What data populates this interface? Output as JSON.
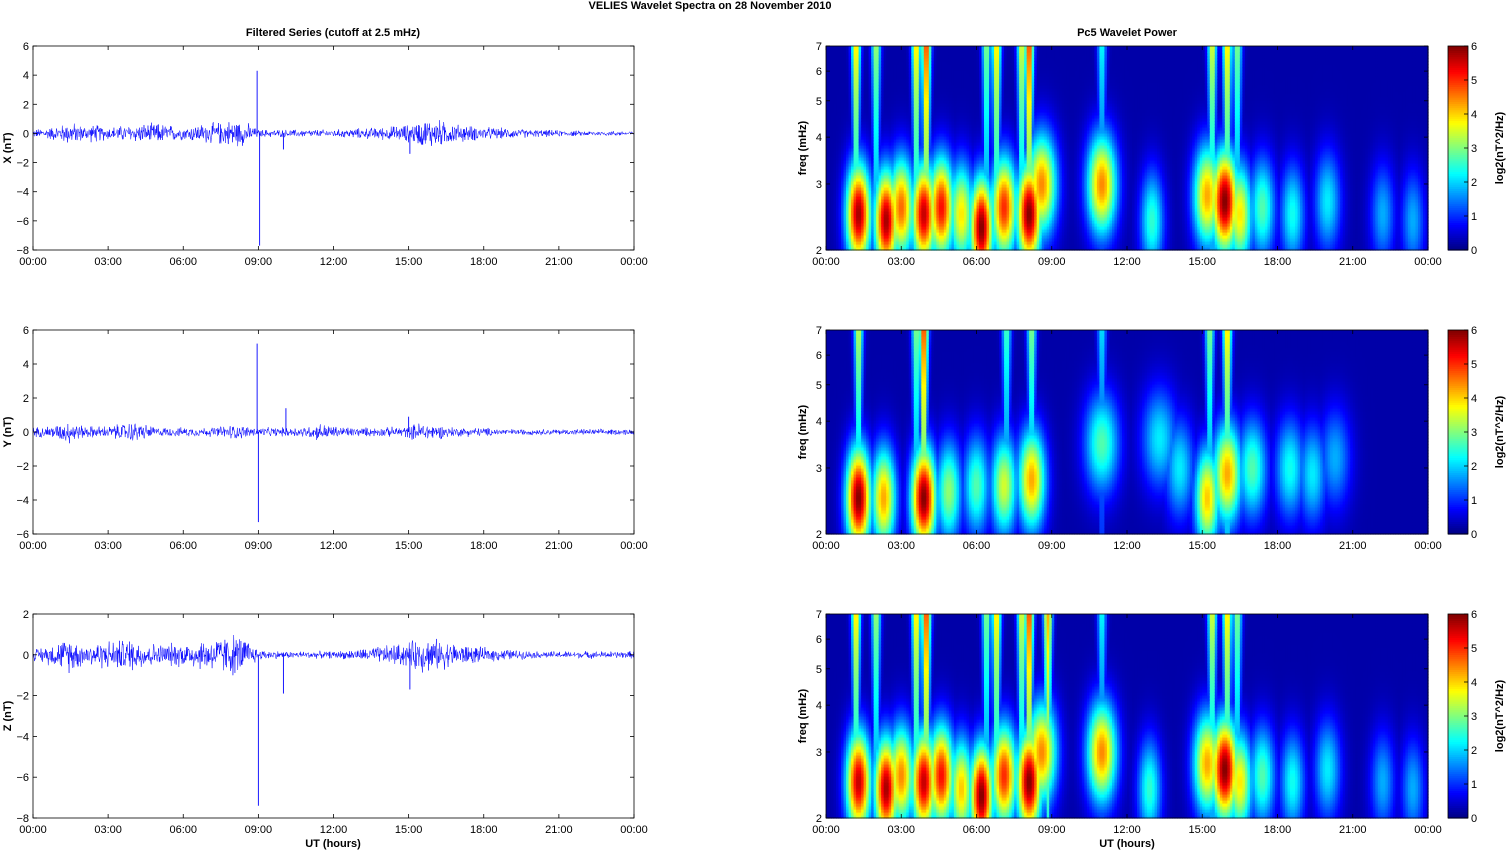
{
  "figure": {
    "title": "VELIES Wavelet Spectra on 28 November  2010",
    "left_column_title": "Filtered Series (cutoff at 2.5 mHz)",
    "right_column_title": "Pc5 Wavelet Power",
    "time_axis_label": "UT (hours)"
  },
  "colors": {
    "series_line": "#0000ff",
    "axis": "#000000",
    "background": "#ffffff",
    "colormap": "jet"
  },
  "chart_data": [
    {
      "type": "line",
      "panel": "X",
      "title": "Filtered Series (cutoff at 2.5 mHz)",
      "xlabel": "",
      "ylabel": "X (nT)",
      "xlim": [
        0,
        24
      ],
      "ylim": [
        -8,
        6
      ],
      "yticks": [
        -8,
        -6,
        -4,
        -2,
        0,
        2,
        4,
        6
      ],
      "xtick_labels": [
        "00:00",
        "03:00",
        "06:00",
        "09:00",
        "12:00",
        "15:00",
        "18:00",
        "21:00",
        "00:00"
      ],
      "envelope": {
        "hours": [
          0,
          1,
          1.5,
          2,
          2.5,
          3,
          4,
          5,
          6,
          6.5,
          7,
          7.5,
          8,
          8.5,
          9,
          10,
          11,
          12,
          13,
          14,
          15,
          15.5,
          16,
          16.5,
          17,
          18,
          19,
          20,
          21,
          22,
          23,
          24
        ],
        "amplitude_nT": [
          0.3,
          0.6,
          0.9,
          0.6,
          0.7,
          0.5,
          0.7,
          0.8,
          0.5,
          0.7,
          0.8,
          0.9,
          1.1,
          0.9,
          0.3,
          0.3,
          0.3,
          0.3,
          0.4,
          0.5,
          0.7,
          1.0,
          1.2,
          0.9,
          0.7,
          0.5,
          0.4,
          0.3,
          0.25,
          0.2,
          0.2,
          0.2
        ]
      },
      "spikes": [
        {
          "hour": 8.95,
          "value": 4.3
        },
        {
          "hour": 9.05,
          "value": -7.7
        },
        {
          "hour": 15.05,
          "value": -1.4
        },
        {
          "hour": 10.0,
          "value": -1.1
        }
      ]
    },
    {
      "type": "heatmap",
      "panel": "X",
      "title": "Pc5 Wavelet Power",
      "xlabel": "",
      "ylabel": "freq (mHz)",
      "xlim": [
        0,
        24
      ],
      "ylim": [
        2,
        7
      ],
      "yscale": "log",
      "yticks": [
        2,
        3,
        4,
        5,
        6,
        7
      ],
      "xtick_labels": [
        "00:00",
        "03:00",
        "06:00",
        "09:00",
        "12:00",
        "15:00",
        "18:00",
        "21:00",
        "00:00"
      ],
      "colorbar": {
        "label": "log2(nT^2/Hz)",
        "range": [
          0,
          6
        ],
        "ticks": [
          0,
          1,
          2,
          3,
          4,
          5,
          6
        ]
      },
      "blobs": [
        {
          "hour": 1.3,
          "freq": 2.5,
          "power": 5.8
        },
        {
          "hour": 2.4,
          "freq": 2.4,
          "power": 5.8
        },
        {
          "hour": 3.0,
          "freq": 2.6,
          "power": 4.6
        },
        {
          "hour": 3.9,
          "freq": 2.5,
          "power": 5.6
        },
        {
          "hour": 4.6,
          "freq": 2.6,
          "power": 5.2
        },
        {
          "hour": 5.4,
          "freq": 2.5,
          "power": 3.8
        },
        {
          "hour": 6.2,
          "freq": 2.3,
          "power": 6.0
        },
        {
          "hour": 7.1,
          "freq": 2.6,
          "power": 5.0
        },
        {
          "hour": 8.1,
          "freq": 2.5,
          "power": 6.0
        },
        {
          "hour": 8.6,
          "freq": 3.0,
          "power": 4.4
        },
        {
          "hour": 11.0,
          "freq": 3.0,
          "power": 4.4
        },
        {
          "hour": 13.0,
          "freq": 2.4,
          "power": 2.4
        },
        {
          "hour": 15.2,
          "freq": 2.8,
          "power": 4.2
        },
        {
          "hour": 15.9,
          "freq": 2.7,
          "power": 6.0
        },
        {
          "hour": 16.5,
          "freq": 2.5,
          "power": 3.8
        },
        {
          "hour": 17.4,
          "freq": 2.6,
          "power": 2.6
        },
        {
          "hour": 18.6,
          "freq": 2.5,
          "power": 2.2
        },
        {
          "hour": 20.0,
          "freq": 2.7,
          "power": 2.0
        },
        {
          "hour": 22.2,
          "freq": 2.5,
          "power": 1.6
        },
        {
          "hour": 23.4,
          "freq": 2.4,
          "power": 1.6
        }
      ],
      "streaks": [
        {
          "hour": 1.2,
          "power": 4.0
        },
        {
          "hour": 2.0,
          "power": 3.2
        },
        {
          "hour": 3.6,
          "power": 4.0
        },
        {
          "hour": 4.0,
          "power": 5.0
        },
        {
          "hour": 6.4,
          "power": 3.0
        },
        {
          "hour": 6.8,
          "power": 4.0
        },
        {
          "hour": 7.8,
          "power": 3.6
        },
        {
          "hour": 8.1,
          "power": 5.0
        },
        {
          "hour": 11.0,
          "power": 2.2
        },
        {
          "hour": 15.4,
          "power": 3.6
        },
        {
          "hour": 16.0,
          "power": 4.0
        },
        {
          "hour": 16.4,
          "power": 3.0
        }
      ]
    },
    {
      "type": "line",
      "panel": "Y",
      "title": "",
      "xlabel": "",
      "ylabel": "Y (nT)",
      "xlim": [
        0,
        24
      ],
      "ylim": [
        -6,
        6
      ],
      "yticks": [
        -6,
        -4,
        -2,
        0,
        2,
        4,
        6
      ],
      "xtick_labels": [
        "00:00",
        "03:00",
        "06:00",
        "09:00",
        "12:00",
        "15:00",
        "18:00",
        "21:00",
        "00:00"
      ],
      "envelope": {
        "hours": [
          0,
          1,
          1.5,
          2,
          3,
          4,
          5,
          6,
          7,
          8,
          9,
          10,
          11,
          11.5,
          12,
          13,
          14,
          15,
          15.5,
          16,
          17,
          18,
          19,
          20,
          21,
          22,
          23,
          24
        ],
        "amplitude_nT": [
          0.3,
          0.5,
          0.8,
          0.4,
          0.4,
          0.7,
          0.3,
          0.3,
          0.3,
          0.5,
          0.3,
          0.3,
          0.4,
          0.6,
          0.4,
          0.3,
          0.3,
          0.4,
          0.7,
          0.5,
          0.3,
          0.3,
          0.2,
          0.2,
          0.2,
          0.2,
          0.2,
          0.2
        ]
      },
      "spikes": [
        {
          "hour": 8.95,
          "value": 5.2
        },
        {
          "hour": 9.0,
          "value": -5.3
        },
        {
          "hour": 10.1,
          "value": 1.4
        },
        {
          "hour": 15.0,
          "value": 0.9
        }
      ]
    },
    {
      "type": "heatmap",
      "panel": "Y",
      "title": "",
      "xlabel": "",
      "ylabel": "freq (mHz)",
      "xlim": [
        0,
        24
      ],
      "ylim": [
        2,
        7
      ],
      "yscale": "log",
      "yticks": [
        2,
        3,
        4,
        5,
        6,
        7
      ],
      "xtick_labels": [
        "00:00",
        "03:00",
        "06:00",
        "09:00",
        "12:00",
        "15:00",
        "18:00",
        "21:00",
        "00:00"
      ],
      "colorbar": {
        "label": "log2(nT^2/Hz)",
        "range": [
          0,
          6
        ],
        "ticks": [
          0,
          1,
          2,
          3,
          4,
          5,
          6
        ]
      },
      "blobs": [
        {
          "hour": 1.3,
          "freq": 2.5,
          "power": 6.0
        },
        {
          "hour": 2.3,
          "freq": 2.5,
          "power": 4.2
        },
        {
          "hour": 3.9,
          "freq": 2.5,
          "power": 6.0
        },
        {
          "hour": 4.9,
          "freq": 2.6,
          "power": 3.0
        },
        {
          "hour": 6.0,
          "freq": 2.7,
          "power": 2.6
        },
        {
          "hour": 7.1,
          "freq": 2.7,
          "power": 3.4
        },
        {
          "hour": 8.2,
          "freq": 2.8,
          "power": 4.2
        },
        {
          "hour": 11.0,
          "freq": 3.5,
          "power": 2.6
        },
        {
          "hour": 13.3,
          "freq": 3.6,
          "power": 2.0
        },
        {
          "hour": 14.1,
          "freq": 3.0,
          "power": 2.0
        },
        {
          "hour": 15.2,
          "freq": 2.5,
          "power": 4.0
        },
        {
          "hour": 16.0,
          "freq": 2.9,
          "power": 4.2
        },
        {
          "hour": 17.0,
          "freq": 3.0,
          "power": 2.6
        },
        {
          "hour": 18.5,
          "freq": 3.0,
          "power": 2.2
        },
        {
          "hour": 19.4,
          "freq": 2.9,
          "power": 2.0
        },
        {
          "hour": 20.3,
          "freq": 3.2,
          "power": 1.6
        }
      ],
      "streaks": [
        {
          "hour": 1.3,
          "power": 3.4
        },
        {
          "hour": 3.9,
          "power": 5.0
        },
        {
          "hour": 3.6,
          "power": 3.0
        },
        {
          "hour": 7.2,
          "power": 2.6
        },
        {
          "hour": 8.2,
          "power": 3.0
        },
        {
          "hour": 11.0,
          "power": 2.0
        },
        {
          "hour": 15.3,
          "power": 3.0
        },
        {
          "hour": 16.0,
          "power": 4.0
        }
      ]
    },
    {
      "type": "line",
      "panel": "Z",
      "title": "",
      "xlabel": "UT (hours)",
      "ylabel": "Z (nT)",
      "xlim": [
        0,
        24
      ],
      "ylim": [
        -8,
        2
      ],
      "yticks": [
        -8,
        -6,
        -4,
        -2,
        0,
        2
      ],
      "xtick_labels": [
        "00:00",
        "03:00",
        "06:00",
        "09:00",
        "12:00",
        "15:00",
        "18:00",
        "21:00",
        "00:00"
      ],
      "envelope": {
        "hours": [
          0,
          1,
          1.5,
          2,
          3,
          4,
          5,
          6,
          7,
          7.5,
          8,
          8.5,
          9,
          10,
          11,
          12,
          13,
          14,
          15,
          15.5,
          16,
          17,
          18,
          19,
          20,
          21,
          22,
          23,
          24
        ],
        "amplitude_nT": [
          0.3,
          0.7,
          1.0,
          0.6,
          0.8,
          0.9,
          0.6,
          0.7,
          0.9,
          1.0,
          1.2,
          0.9,
          0.3,
          0.2,
          0.2,
          0.2,
          0.3,
          0.5,
          0.7,
          1.0,
          0.9,
          0.6,
          0.4,
          0.3,
          0.2,
          0.2,
          0.2,
          0.2,
          0.2
        ]
      },
      "spikes": [
        {
          "hour": 9.0,
          "value": -7.4
        },
        {
          "hour": 10.0,
          "value": -1.9
        },
        {
          "hour": 15.05,
          "value": -1.7
        }
      ]
    },
    {
      "type": "heatmap",
      "panel": "Z",
      "title": "",
      "xlabel": "UT (hours)",
      "ylabel": "freq (mHz)",
      "xlim": [
        0,
        24
      ],
      "ylim": [
        2,
        7
      ],
      "yscale": "log",
      "yticks": [
        2,
        3,
        4,
        5,
        6,
        7
      ],
      "xtick_labels": [
        "00:00",
        "03:00",
        "06:00",
        "09:00",
        "12:00",
        "15:00",
        "18:00",
        "21:00",
        "00:00"
      ],
      "colorbar": {
        "label": "log2(nT^2/Hz)",
        "range": [
          0,
          6
        ],
        "ticks": [
          0,
          1,
          2,
          3,
          4,
          5,
          6
        ]
      },
      "blobs": [
        {
          "hour": 1.3,
          "freq": 2.5,
          "power": 5.6
        },
        {
          "hour": 2.4,
          "freq": 2.4,
          "power": 5.8
        },
        {
          "hour": 3.0,
          "freq": 2.6,
          "power": 4.4
        },
        {
          "hour": 3.9,
          "freq": 2.5,
          "power": 5.6
        },
        {
          "hour": 4.6,
          "freq": 2.6,
          "power": 5.2
        },
        {
          "hour": 5.4,
          "freq": 2.4,
          "power": 4.0
        },
        {
          "hour": 6.2,
          "freq": 2.3,
          "power": 6.0
        },
        {
          "hour": 7.1,
          "freq": 2.6,
          "power": 5.0
        },
        {
          "hour": 8.1,
          "freq": 2.5,
          "power": 6.0
        },
        {
          "hour": 8.6,
          "freq": 3.0,
          "power": 4.4
        },
        {
          "hour": 11.0,
          "freq": 3.0,
          "power": 4.4
        },
        {
          "hour": 12.9,
          "freq": 2.4,
          "power": 2.4
        },
        {
          "hour": 15.2,
          "freq": 2.8,
          "power": 4.2
        },
        {
          "hour": 15.9,
          "freq": 2.7,
          "power": 6.0
        },
        {
          "hour": 16.5,
          "freq": 2.5,
          "power": 3.8
        },
        {
          "hour": 17.4,
          "freq": 2.6,
          "power": 2.6
        },
        {
          "hour": 18.6,
          "freq": 2.5,
          "power": 2.2
        },
        {
          "hour": 20.0,
          "freq": 2.7,
          "power": 2.0
        },
        {
          "hour": 22.2,
          "freq": 2.5,
          "power": 1.6
        },
        {
          "hour": 23.4,
          "freq": 2.4,
          "power": 1.6
        }
      ],
      "streaks": [
        {
          "hour": 1.2,
          "power": 4.0
        },
        {
          "hour": 2.0,
          "power": 3.2
        },
        {
          "hour": 3.6,
          "power": 4.0
        },
        {
          "hour": 4.0,
          "power": 5.0
        },
        {
          "hour": 6.4,
          "power": 3.0
        },
        {
          "hour": 6.8,
          "power": 4.0
        },
        {
          "hour": 7.8,
          "power": 3.6
        },
        {
          "hour": 8.1,
          "power": 5.0
        },
        {
          "hour": 8.85,
          "power": 4.2
        },
        {
          "hour": 11.0,
          "power": 2.2
        },
        {
          "hour": 15.4,
          "power": 3.6
        },
        {
          "hour": 16.0,
          "power": 4.0
        },
        {
          "hour": 16.4,
          "power": 3.0
        }
      ]
    }
  ]
}
